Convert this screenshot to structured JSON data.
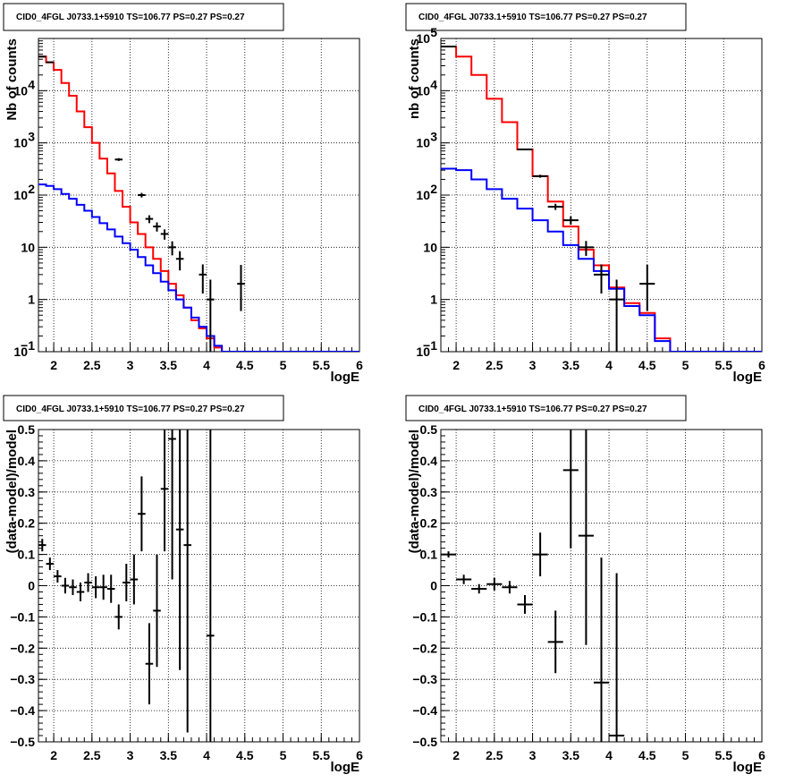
{
  "chart_data": [
    {
      "type": "histogram",
      "title": "CID0_4FGL J0733.1+5910 TS=106.77 PS=0.27 PS=0.27",
      "xlabel": "logE",
      "ylabel": "Nb of counts",
      "xlim": [
        1.8,
        6.0
      ],
      "ylim": [
        0.1,
        100000
      ],
      "yscale": "log",
      "grid": true,
      "xticks": [
        "2",
        "2.5",
        "3",
        "3.5",
        "4",
        "4.5",
        "5",
        "5.5",
        "6"
      ],
      "yticks": [
        {
          "v": 0.1,
          "t": "10",
          "sup": "−1"
        },
        {
          "v": 1,
          "t": "1",
          "sup": ""
        },
        {
          "v": 10,
          "t": "10",
          "sup": ""
        },
        {
          "v": 100,
          "t": "10",
          "sup": "2"
        },
        {
          "v": 1000,
          "t": "10",
          "sup": "3"
        },
        {
          "v": 10000,
          "t": "10",
          "sup": "4"
        }
      ],
      "series": [
        {
          "color": "#ff0000",
          "kind": "step",
          "binwidth": 0.1,
          "x_start": 1.8,
          "values": [
            45000,
            35000,
            25000,
            14000,
            8000,
            4000,
            2000,
            1000,
            500,
            260,
            120,
            60,
            30,
            18,
            10,
            6,
            3.5,
            2,
            1.2,
            0.7,
            0.4,
            0.28,
            0.18,
            0.12,
            0.1
          ]
        },
        {
          "color": "#0000ff",
          "kind": "step",
          "binwidth": 0.1,
          "x_start": 1.8,
          "values": [
            160,
            150,
            130,
            105,
            85,
            65,
            50,
            38,
            29,
            22,
            16,
            12,
            9,
            6.5,
            4.5,
            3.2,
            2.2,
            1.5,
            1.0,
            0.7,
            0.45,
            0.3,
            0.2,
            0.13,
            0.1,
            0.1,
            0.1,
            0.1,
            0.1,
            0.1,
            0.1,
            0.1,
            0.1,
            0.1,
            0.1,
            0.1,
            0.1,
            0.1,
            0.1,
            0.1,
            0.1,
            0.1
          ]
        },
        {
          "color": "#000000",
          "kind": "points",
          "halfwidth": 0.05,
          "x": [
            1.85,
            1.95,
            2.85,
            3.15,
            3.25,
            3.35,
            3.45,
            3.55,
            3.65,
            3.95,
            4.05,
            4.45
          ],
          "y": [
            45000,
            35000,
            480,
            100,
            35,
            25,
            18,
            10,
            6,
            3,
            1,
            2
          ],
          "err_lo": [
            400,
            350,
            30,
            10,
            6,
            5,
            4,
            3,
            2.4,
            1.7,
            1,
            1.4
          ],
          "err_hi": [
            400,
            350,
            30,
            10,
            6,
            5,
            4,
            3,
            2.4,
            1.7,
            1.4,
            2.6
          ]
        }
      ]
    },
    {
      "type": "histogram",
      "title": "CID0_4FGL J0733.1+5910 TS=106.77 PS=0.27 PS=0.27",
      "xlabel": "logE",
      "ylabel": "nb of counts",
      "xlim": [
        1.8,
        6.0
      ],
      "ylim": [
        0.1,
        100000
      ],
      "yscale": "log",
      "grid": true,
      "xticks": [
        "2",
        "2.5",
        "3",
        "3.5",
        "4",
        "4.5",
        "5",
        "5.5",
        "6"
      ],
      "yticks": [
        {
          "v": 0.1,
          "t": "10",
          "sup": "−1"
        },
        {
          "v": 1,
          "t": "1",
          "sup": ""
        },
        {
          "v": 10,
          "t": "10",
          "sup": ""
        },
        {
          "v": 100,
          "t": "10",
          "sup": "2"
        },
        {
          "v": 1000,
          "t": "10",
          "sup": "3"
        },
        {
          "v": 10000,
          "t": "10",
          "sup": "4"
        },
        {
          "v": 100000,
          "t": "10",
          "sup": "5"
        }
      ],
      "series": [
        {
          "color": "#ff0000",
          "kind": "step",
          "binwidth": 0.2,
          "x_start": 1.8,
          "values": [
            70000,
            45000,
            20000,
            7000,
            2500,
            750,
            230,
            75,
            25,
            9,
            4.5,
            1.7,
            0.85,
            0.55,
            0.18,
            0.1
          ]
        },
        {
          "color": "#0000ff",
          "kind": "step",
          "binwidth": 0.2,
          "x_start": 1.8,
          "values": [
            320,
            300,
            200,
            130,
            85,
            55,
            33,
            20,
            11,
            6,
            3.5,
            1.6,
            0.75,
            0.5,
            0.16,
            0.1,
            0.1,
            0.1,
            0.1,
            0.1,
            0.1
          ]
        },
        {
          "color": "#000000",
          "kind": "points",
          "halfwidth": 0.1,
          "x": [
            1.9,
            2.9,
            3.1,
            3.3,
            3.5,
            3.7,
            3.9,
            4.1,
            4.5
          ],
          "y": [
            70000,
            750,
            230,
            60,
            33,
            10,
            3,
            1,
            2
          ],
          "err_lo": [
            265,
            27,
            15,
            8,
            6,
            3.2,
            1.7,
            1,
            1.4
          ],
          "err_hi": [
            265,
            27,
            15,
            8,
            6,
            3.2,
            1.7,
            1.4,
            2.6
          ]
        }
      ]
    },
    {
      "type": "scatter",
      "title": "CID0_4FGL J0733.1+5910 TS=106.77 PS=0.27 PS=0.27",
      "xlabel": "logE",
      "ylabel": "(data-model)/model",
      "xlim": [
        1.8,
        6.0
      ],
      "ylim": [
        -0.5,
        0.5
      ],
      "grid": true,
      "xticks": [
        "2",
        "2.5",
        "3",
        "3.5",
        "4",
        "4.5",
        "5",
        "5.5",
        "6"
      ],
      "yticks": [
        "−0.5",
        "−0.4",
        "−0.3",
        "−0.2",
        "−0.1",
        "0",
        "0.1",
        "0.2",
        "0.3",
        "0.4",
        "0.5"
      ],
      "halfwidth": 0.05,
      "x": [
        1.85,
        1.95,
        2.05,
        2.15,
        2.25,
        2.35,
        2.45,
        2.55,
        2.65,
        2.75,
        2.85,
        2.95,
        3.05,
        3.15,
        3.25,
        3.35,
        3.45,
        3.55,
        3.65,
        3.75,
        4.05
      ],
      "y": [
        0.13,
        0.07,
        0.03,
        0.0,
        -0.005,
        -0.02,
        0.01,
        -0.005,
        -0.005,
        -0.01,
        -0.1,
        0.01,
        0.02,
        0.23,
        -0.25,
        -0.08,
        0.31,
        0.47,
        0.18,
        0.13,
        -0.16
      ],
      "err": [
        0.02,
        0.02,
        0.02,
        0.025,
        0.025,
        0.03,
        0.03,
        0.035,
        0.04,
        0.045,
        0.04,
        0.06,
        0.08,
        0.12,
        0.13,
        0.18,
        0.2,
        0.45,
        0.45,
        0.6,
        0.8
      ]
    },
    {
      "type": "scatter",
      "title": "CID0_4FGL J0733.1+5910 TS=106.77 PS=0.27 PS=0.27",
      "xlabel": "logE",
      "ylabel": "(data-model)/model",
      "xlim": [
        1.8,
        6.0
      ],
      "ylim": [
        -0.5,
        0.5
      ],
      "grid": true,
      "xticks": [
        "2",
        "2.5",
        "3",
        "3.5",
        "4",
        "4.5",
        "5",
        "5.5",
        "6"
      ],
      "yticks": [
        "−0.5",
        "−0.4",
        "−0.3",
        "−0.2",
        "−0.1",
        "0",
        "0.1",
        "0.2",
        "0.3",
        "0.4",
        "0.5"
      ],
      "halfwidth": 0.1,
      "x": [
        1.9,
        2.1,
        2.3,
        2.5,
        2.7,
        2.9,
        3.1,
        3.3,
        3.5,
        3.7,
        3.9,
        4.1
      ],
      "y": [
        0.1,
        0.02,
        -0.01,
        0.005,
        -0.005,
        -0.06,
        0.1,
        -0.18,
        0.37,
        0.16,
        -0.31,
        -0.48
      ],
      "err": [
        0.01,
        0.015,
        0.015,
        0.02,
        0.02,
        0.03,
        0.07,
        0.1,
        0.25,
        0.35,
        0.4,
        0.52
      ]
    }
  ]
}
